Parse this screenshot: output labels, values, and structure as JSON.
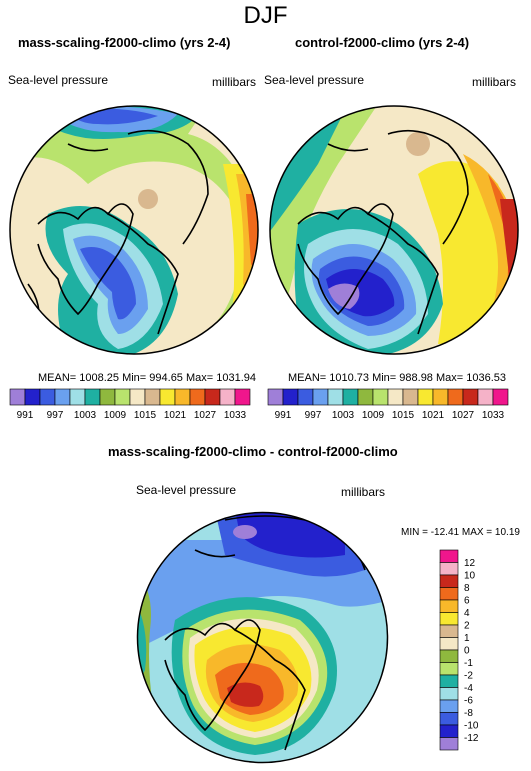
{
  "header": {
    "title": "DJF"
  },
  "panels": [
    {
      "title": "mass-scaling-f2000-climo (yrs 2-4)",
      "variable": "Sea-level pressure",
      "units": "millibars",
      "stats": "MEAN= 1008.25  Min= 994.65  Max= 1031.94"
    },
    {
      "title": "control-f2000-climo (yrs 2-4)",
      "variable": "Sea-level pressure",
      "units": "millibars",
      "stats": "MEAN= 1010.73  Min= 988.98  Max= 1036.53"
    },
    {
      "title": "mass-scaling-f2000-climo - control-f2000-climo",
      "variable": "Sea-level pressure",
      "units": "millibars",
      "stats": "MIN = -12.41 MAX =  10.19"
    }
  ],
  "colorbar_abs": {
    "colors": [
      "#9f7fd8",
      "#2321cc",
      "#3b5ce0",
      "#6aa0ef",
      "#9fdfe6",
      "#1fb0a2",
      "#8fb83e",
      "#b9e36d",
      "#f5e8c6",
      "#d9b88f",
      "#f8e830",
      "#f8b82a",
      "#ef6a1c",
      "#c8281c",
      "#f5b2c8",
      "#f0168c"
    ],
    "labels": [
      "991",
      "997",
      "1003",
      "1009",
      "1015",
      "1021",
      "1027",
      "1033"
    ]
  },
  "colorbar_diff": {
    "colors": [
      "#f0168c",
      "#f5b2c8",
      "#c8281c",
      "#ef6a1c",
      "#f8b82a",
      "#f8e830",
      "#d9b88f",
      "#f5e8c6",
      "#8fb83e",
      "#b9e36d",
      "#1fb0a2",
      "#9fdfe6",
      "#6aa0ef",
      "#3b5ce0",
      "#2321cc",
      "#9f7fd8"
    ],
    "labels": [
      "12",
      "10",
      "8",
      "6",
      "4",
      "2",
      "1",
      "0",
      "-1",
      "-2",
      "-4",
      "-6",
      "-8",
      "-10",
      "-12"
    ]
  }
}
